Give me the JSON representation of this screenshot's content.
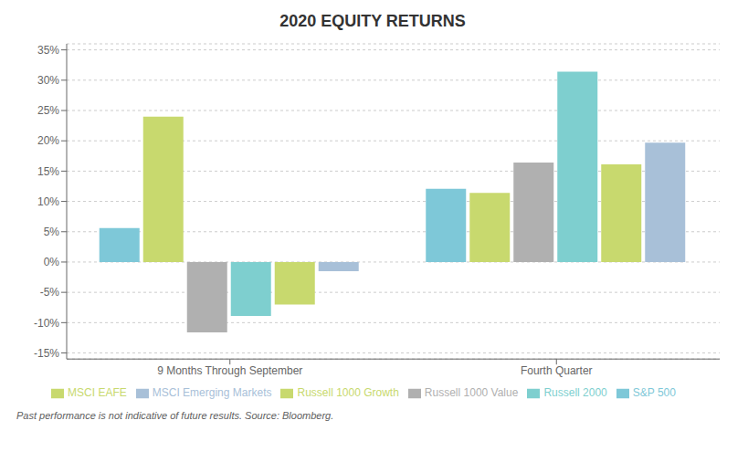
{
  "chart_data": {
    "type": "bar",
    "title": "2020 EQUITY RETURNS",
    "categories": [
      "9 Months Through September",
      "Fourth Quarter"
    ],
    "series": [
      {
        "name": "S&P 500",
        "color": "#7ec8d8",
        "values": [
          5.6,
          12.1
        ]
      },
      {
        "name": "Russell 1000 Growth",
        "color": "#c8d96e",
        "values": [
          24.0,
          11.4
        ]
      },
      {
        "name": "Russell 1000 Value",
        "color": "#b0b0b0",
        "values": [
          -11.6,
          16.4
        ]
      },
      {
        "name": "Russell 2000",
        "color": "#7ecfcf",
        "values": [
          -8.9,
          31.4
        ]
      },
      {
        "name": "MSCI EAFE",
        "color": "#c8d96e",
        "values": [
          -7.0,
          16.1
        ]
      },
      {
        "name": "MSCI Emerging Markets",
        "color": "#a8c0d8",
        "values": [
          -1.5,
          19.7
        ]
      }
    ],
    "ylim": [
      -16,
      36
    ],
    "yticks": [
      {
        "value": -15,
        "label": "-15%"
      },
      {
        "value": -10,
        "label": "-10%"
      },
      {
        "value": -5,
        "label": "-5%"
      },
      {
        "value": 0,
        "label": "0%"
      },
      {
        "value": 5,
        "label": "5%"
      },
      {
        "value": 10,
        "label": "10%"
      },
      {
        "value": 15,
        "label": "15%"
      },
      {
        "value": 20,
        "label": "20%"
      },
      {
        "value": 25,
        "label": "25%"
      },
      {
        "value": 30,
        "label": "30%"
      },
      {
        "value": 35,
        "label": "35%"
      }
    ],
    "grid": true,
    "legend": "lower center",
    "annotations": [
      "Past performance is not indicative of future results. Source: Bloomberg."
    ]
  }
}
